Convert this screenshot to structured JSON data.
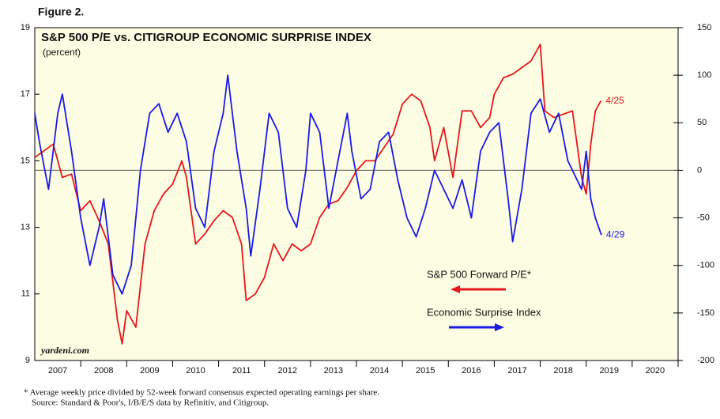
{
  "figure_label": "Figure 2.",
  "chart_data": {
    "type": "line",
    "title": "S&P 500 P/E vs. CITIGROUP ECONOMIC SURPRISE INDEX",
    "subtitle": "(percent)",
    "source_tag": "yardeni.com",
    "xlim": [
      2007,
      2021
    ],
    "xticks": [
      {
        "value": 2007.5,
        "label": "2007"
      },
      {
        "value": 2008.5,
        "label": "2008"
      },
      {
        "value": 2009.5,
        "label": "2009"
      },
      {
        "value": 2010.5,
        "label": "2010"
      },
      {
        "value": 2011.5,
        "label": "2011"
      },
      {
        "value": 2012.5,
        "label": "2012"
      },
      {
        "value": 2013.5,
        "label": "2013"
      },
      {
        "value": 2014.5,
        "label": "2014"
      },
      {
        "value": 2015.5,
        "label": "2015"
      },
      {
        "value": 2016.5,
        "label": "2016"
      },
      {
        "value": 2017.5,
        "label": "2017"
      },
      {
        "value": 2018.5,
        "label": "2018"
      },
      {
        "value": 2019.5,
        "label": "2019"
      },
      {
        "value": 2020.5,
        "label": "2020"
      }
    ],
    "ylim": [
      9,
      19
    ],
    "yticks": [
      9,
      11,
      13,
      15,
      17,
      19
    ],
    "y2lim": [
      -200,
      150
    ],
    "y2ticks": [
      -200,
      -150,
      -100,
      -50,
      0,
      50,
      100,
      150
    ],
    "series": [
      {
        "name": "S&P 500 Forward P/E*",
        "color": "#e8161b",
        "end_label": "4/25",
        "x": [
          2007.0,
          2007.2,
          2007.4,
          2007.6,
          2007.8,
          2008.0,
          2008.2,
          2008.4,
          2008.6,
          2008.8,
          2008.9,
          2009.0,
          2009.2,
          2009.4,
          2009.6,
          2009.8,
          2010.0,
          2010.2,
          2010.3,
          2010.5,
          2010.7,
          2010.9,
          2011.1,
          2011.3,
          2011.5,
          2011.6,
          2011.8,
          2012.0,
          2012.2,
          2012.4,
          2012.6,
          2012.8,
          2013.0,
          2013.2,
          2013.4,
          2013.6,
          2013.8,
          2014.0,
          2014.2,
          2014.4,
          2014.6,
          2014.8,
          2015.0,
          2015.2,
          2015.4,
          2015.6,
          2015.7,
          2015.9,
          2016.1,
          2016.3,
          2016.5,
          2016.7,
          2016.9,
          2017.0,
          2017.2,
          2017.4,
          2017.6,
          2017.8,
          2018.0,
          2018.1,
          2018.3,
          2018.5,
          2018.7,
          2018.9,
          2019.0,
          2019.1,
          2019.2,
          2019.32
        ],
        "values": [
          15.1,
          15.3,
          15.5,
          14.5,
          14.6,
          13.5,
          13.8,
          13.2,
          12.5,
          10.2,
          9.5,
          10.5,
          10.0,
          12.5,
          13.5,
          14.0,
          14.3,
          15.0,
          14.5,
          12.5,
          12.8,
          13.2,
          13.5,
          13.3,
          12.5,
          10.8,
          11.0,
          11.5,
          12.5,
          12.0,
          12.5,
          12.3,
          12.5,
          13.3,
          13.7,
          13.8,
          14.2,
          14.7,
          15.0,
          15.0,
          15.4,
          15.8,
          16.7,
          17.0,
          16.8,
          16.0,
          15.0,
          16.0,
          14.5,
          16.5,
          16.5,
          16.0,
          16.3,
          17.0,
          17.5,
          17.6,
          17.8,
          18.0,
          18.5,
          16.5,
          16.3,
          16.4,
          16.5,
          14.5,
          14.0,
          15.5,
          16.5,
          16.8
        ]
      },
      {
        "name": "Economic Surprise Index",
        "color": "#1a1ae6",
        "axis": "y2",
        "end_label": "4/29",
        "x": [
          2007.0,
          2007.1,
          2007.3,
          2007.5,
          2007.6,
          2007.8,
          2008.0,
          2008.2,
          2008.4,
          2008.5,
          2008.7,
          2008.9,
          2009.1,
          2009.3,
          2009.5,
          2009.7,
          2009.9,
          2010.1,
          2010.3,
          2010.5,
          2010.7,
          2010.9,
          2011.1,
          2011.2,
          2011.4,
          2011.6,
          2011.7,
          2011.9,
          2012.1,
          2012.3,
          2012.5,
          2012.7,
          2012.9,
          2013.0,
          2013.2,
          2013.4,
          2013.6,
          2013.8,
          2013.9,
          2014.1,
          2014.3,
          2014.5,
          2014.7,
          2014.9,
          2015.1,
          2015.3,
          2015.5,
          2015.7,
          2015.9,
          2016.1,
          2016.3,
          2016.5,
          2016.7,
          2016.9,
          2017.1,
          2017.3,
          2017.4,
          2017.6,
          2017.8,
          2018.0,
          2018.2,
          2018.4,
          2018.6,
          2018.8,
          2018.9,
          2019.0,
          2019.1,
          2019.2,
          2019.33
        ],
        "values": [
          60,
          30,
          -20,
          60,
          80,
          20,
          -50,
          -100,
          -60,
          -30,
          -110,
          -130,
          -100,
          0,
          60,
          70,
          40,
          60,
          30,
          -40,
          -60,
          20,
          60,
          100,
          20,
          -40,
          -90,
          -20,
          60,
          40,
          -40,
          -60,
          0,
          60,
          40,
          -40,
          10,
          60,
          20,
          -30,
          -20,
          30,
          40,
          -10,
          -50,
          -70,
          -40,
          0,
          -20,
          -40,
          -10,
          -50,
          20,
          40,
          50,
          -30,
          -75,
          -20,
          60,
          75,
          40,
          60,
          10,
          -10,
          -20,
          20,
          -30,
          -50,
          -68
        ]
      }
    ]
  },
  "footnotes": [
    "*  Average weekly price divided by 52-week forward consensus expected operating earnings per share.",
    "Source: Standard & Poor's, I/B/E/S data by Refinitiv, and Citigroup."
  ]
}
